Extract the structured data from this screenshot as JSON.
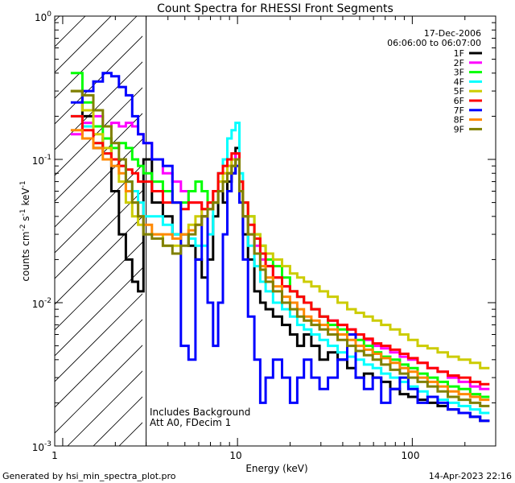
{
  "chart_data": {
    "type": "line",
    "title": "Count Spectra for RHESSI Front Segments",
    "xlabel": "Energy (keV)",
    "ylabel_parts": [
      "counts cm",
      "-2",
      " s",
      "-1",
      " keV",
      "-1"
    ],
    "x_scale": "log",
    "y_scale": "log",
    "xlim": [
      0.9,
      300
    ],
    "ylim": [
      0.001,
      1.0
    ],
    "x_tick_labels": [
      "1",
      "10",
      "100"
    ],
    "y_tick_labels": [
      {
        "base": "10",
        "exp": "0"
      },
      {
        "base": "10",
        "exp": "-1"
      },
      {
        "base": "10",
        "exp": "-2"
      },
      {
        "base": "10",
        "exp": "-3"
      }
    ],
    "date": "17-Dec-2006",
    "time_range": "06:06:00 to 06:07:00",
    "annotation_lines": [
      "Includes Background",
      "Att A0, FDecim 1"
    ],
    "hatched_region_keV": [
      0.9,
      3.0
    ],
    "series": [
      {
        "name": "1F",
        "color": "#000000",
        "x": [
          1.2,
          1.4,
          1.6,
          1.8,
          2.0,
          2.2,
          2.4,
          2.6,
          2.8,
          3.0,
          3.5,
          4.0,
          4.5,
          5.0,
          5.5,
          6.0,
          6.5,
          7.0,
          7.5,
          8.0,
          8.5,
          9.0,
          9.5,
          10.0,
          10.5,
          11.0,
          12,
          13,
          14,
          15,
          17,
          19,
          21,
          23,
          25,
          28,
          31,
          35,
          40,
          45,
          50,
          56,
          63,
          70,
          80,
          90,
          100,
          115,
          130,
          150,
          170,
          200,
          230,
          260
        ],
        "values": [
          0.3,
          0.2,
          0.12,
          0.14,
          0.06,
          0.03,
          0.02,
          0.014,
          0.012,
          0.1,
          0.05,
          0.04,
          0.03,
          0.03,
          0.025,
          0.02,
          0.015,
          0.02,
          0.04,
          0.06,
          0.05,
          0.07,
          0.08,
          0.12,
          0.06,
          0.03,
          0.02,
          0.012,
          0.01,
          0.009,
          0.008,
          0.007,
          0.006,
          0.005,
          0.006,
          0.005,
          0.004,
          0.0045,
          0.004,
          0.0035,
          0.003,
          0.0032,
          0.003,
          0.0028,
          0.0025,
          0.0023,
          0.0022,
          0.0021,
          0.002,
          0.0019,
          0.0018,
          0.0017,
          0.0016,
          0.0015
        ]
      },
      {
        "name": "2F",
        "color": "#ff00ff",
        "x": [
          1.2,
          1.4,
          1.6,
          1.8,
          2.0,
          2.2,
          2.4,
          2.6,
          2.8,
          3.0,
          3.5,
          4.0,
          4.5,
          5.0,
          5.5,
          6.0,
          6.5,
          7.0,
          7.5,
          8.0,
          8.5,
          9.0,
          9.5,
          10.0,
          10.5,
          11.0,
          12,
          13,
          14,
          15,
          17,
          19,
          21,
          23,
          25,
          28,
          31,
          35,
          40,
          45,
          50,
          56,
          63,
          70,
          80,
          90,
          100,
          115,
          130,
          150,
          170,
          200,
          230,
          260
        ],
        "values": [
          0.15,
          0.18,
          0.2,
          0.17,
          0.18,
          0.17,
          0.18,
          0.17,
          0.15,
          0.13,
          0.1,
          0.08,
          0.07,
          0.06,
          0.05,
          0.05,
          0.04,
          0.045,
          0.06,
          0.07,
          0.08,
          0.09,
          0.1,
          0.11,
          0.06,
          0.04,
          0.03,
          0.025,
          0.02,
          0.018,
          0.015,
          0.013,
          0.012,
          0.011,
          0.01,
          0.009,
          0.008,
          0.0075,
          0.007,
          0.0065,
          0.006,
          0.0055,
          0.005,
          0.0048,
          0.0045,
          0.0042,
          0.004,
          0.0038,
          0.0035,
          0.0033,
          0.003,
          0.0028,
          0.0026,
          0.0025
        ]
      },
      {
        "name": "3F",
        "color": "#00ff00",
        "x": [
          1.2,
          1.4,
          1.6,
          1.8,
          2.0,
          2.2,
          2.4,
          2.6,
          2.8,
          3.0,
          3.5,
          4.0,
          4.5,
          5.0,
          5.5,
          6.0,
          6.5,
          7.0,
          7.5,
          8.0,
          8.5,
          9.0,
          9.5,
          10.0,
          10.5,
          11.0,
          12,
          13,
          14,
          15,
          17,
          19,
          21,
          23,
          25,
          28,
          31,
          35,
          40,
          45,
          50,
          56,
          63,
          70,
          80,
          90,
          100,
          115,
          130,
          150,
          170,
          200,
          230,
          260
        ],
        "values": [
          0.4,
          0.25,
          0.17,
          0.14,
          0.12,
          0.13,
          0.12,
          0.1,
          0.09,
          0.08,
          0.07,
          0.06,
          0.05,
          0.05,
          0.06,
          0.07,
          0.06,
          0.05,
          0.05,
          0.06,
          0.07,
          0.08,
          0.09,
          0.1,
          0.06,
          0.05,
          0.04,
          0.03,
          0.025,
          0.02,
          0.018,
          0.015,
          0.012,
          0.011,
          0.01,
          0.009,
          0.008,
          0.007,
          0.0065,
          0.006,
          0.0055,
          0.005,
          0.0045,
          0.0042,
          0.004,
          0.0037,
          0.0035,
          0.0032,
          0.003,
          0.0028,
          0.0026,
          0.0025,
          0.0023,
          0.0022
        ]
      },
      {
        "name": "4F",
        "color": "#00ffff",
        "x": [
          1.2,
          1.4,
          1.6,
          1.8,
          2.0,
          2.2,
          2.4,
          2.6,
          2.8,
          3.0,
          3.5,
          4.0,
          4.5,
          5.0,
          5.5,
          6.0,
          6.5,
          7.0,
          7.5,
          8.0,
          8.5,
          9.0,
          9.5,
          10.0,
          10.5,
          11.0,
          12,
          13,
          14,
          15,
          17,
          19,
          21,
          23,
          25,
          28,
          31,
          35,
          40,
          45,
          50,
          56,
          63,
          70,
          80,
          90,
          100,
          115,
          130,
          150,
          170,
          200,
          230,
          260
        ],
        "values": [
          0.2,
          0.17,
          0.13,
          0.11,
          0.1,
          0.09,
          0.07,
          0.06,
          0.05,
          0.04,
          0.04,
          0.035,
          0.03,
          0.03,
          0.028,
          0.025,
          0.025,
          0.03,
          0.05,
          0.08,
          0.1,
          0.14,
          0.16,
          0.18,
          0.08,
          0.04,
          0.025,
          0.018,
          0.014,
          0.012,
          0.01,
          0.009,
          0.008,
          0.007,
          0.0065,
          0.006,
          0.0055,
          0.005,
          0.0045,
          0.0042,
          0.004,
          0.0037,
          0.0035,
          0.0032,
          0.003,
          0.0028,
          0.0026,
          0.0024,
          0.0022,
          0.0021,
          0.002,
          0.0019,
          0.0018,
          0.0017
        ]
      },
      {
        "name": "5F",
        "color": "#cccc00",
        "x": [
          1.2,
          1.4,
          1.6,
          1.8,
          2.0,
          2.2,
          2.4,
          2.6,
          2.8,
          3.0,
          3.5,
          4.0,
          4.5,
          5.0,
          5.5,
          6.0,
          6.5,
          7.0,
          7.5,
          8.0,
          8.5,
          9.0,
          9.5,
          10.0,
          10.5,
          11.0,
          12,
          13,
          14,
          15,
          17,
          19,
          21,
          23,
          25,
          28,
          31,
          35,
          40,
          45,
          50,
          56,
          63,
          70,
          80,
          90,
          100,
          115,
          130,
          150,
          170,
          200,
          230,
          260
        ],
        "values": [
          0.3,
          0.22,
          0.15,
          0.12,
          0.1,
          0.07,
          0.05,
          0.04,
          0.035,
          0.03,
          0.03,
          0.025,
          0.025,
          0.03,
          0.035,
          0.04,
          0.045,
          0.05,
          0.06,
          0.07,
          0.08,
          0.09,
          0.1,
          0.1,
          0.07,
          0.05,
          0.04,
          0.03,
          0.025,
          0.022,
          0.02,
          0.018,
          0.016,
          0.015,
          0.014,
          0.013,
          0.012,
          0.011,
          0.01,
          0.009,
          0.0085,
          0.008,
          0.0075,
          0.007,
          0.0065,
          0.006,
          0.0055,
          0.005,
          0.0048,
          0.0045,
          0.0042,
          0.004,
          0.0038,
          0.0035
        ]
      },
      {
        "name": "6F",
        "color": "#ff0000",
        "x": [
          1.2,
          1.4,
          1.6,
          1.8,
          2.0,
          2.2,
          2.4,
          2.6,
          2.8,
          3.0,
          3.5,
          4.0,
          4.5,
          5.0,
          5.5,
          6.0,
          6.5,
          7.0,
          7.5,
          8.0,
          8.5,
          9.0,
          9.5,
          10.0,
          10.5,
          11.0,
          12,
          13,
          14,
          15,
          17,
          19,
          21,
          23,
          25,
          28,
          31,
          35,
          40,
          45,
          50,
          56,
          63,
          70,
          80,
          90,
          100,
          115,
          130,
          150,
          170,
          200,
          230,
          260
        ],
        "values": [
          0.2,
          0.16,
          0.13,
          0.11,
          0.1,
          0.09,
          0.085,
          0.08,
          0.07,
          0.07,
          0.06,
          0.05,
          0.05,
          0.045,
          0.05,
          0.05,
          0.045,
          0.05,
          0.06,
          0.08,
          0.09,
          0.1,
          0.11,
          0.11,
          0.07,
          0.05,
          0.035,
          0.028,
          0.022,
          0.018,
          0.015,
          0.013,
          0.012,
          0.011,
          0.01,
          0.009,
          0.008,
          0.0075,
          0.007,
          0.0065,
          0.006,
          0.0056,
          0.0052,
          0.005,
          0.0047,
          0.0044,
          0.0041,
          0.0038,
          0.0035,
          0.0033,
          0.0031,
          0.003,
          0.0028,
          0.0027
        ]
      },
      {
        "name": "7F",
        "color": "#0000ff",
        "x": [
          1.2,
          1.4,
          1.6,
          1.8,
          2.0,
          2.2,
          2.4,
          2.6,
          2.8,
          3.0,
          3.5,
          4.0,
          4.5,
          5.0,
          5.5,
          6.0,
          6.5,
          7.0,
          7.5,
          8.0,
          8.5,
          9.0,
          9.5,
          10.0,
          10.5,
          11.0,
          12,
          13,
          14,
          15,
          17,
          19,
          21,
          23,
          25,
          28,
          31,
          35,
          40,
          45,
          50,
          56,
          63,
          70,
          80,
          90,
          100,
          115,
          130,
          150,
          170,
          200,
          230,
          260
        ],
        "values": [
          0.25,
          0.3,
          0.35,
          0.4,
          0.38,
          0.32,
          0.28,
          0.2,
          0.15,
          0.13,
          0.1,
          0.09,
          0.05,
          0.005,
          0.004,
          0.02,
          0.04,
          0.01,
          0.005,
          0.01,
          0.03,
          0.06,
          0.08,
          0.09,
          0.05,
          0.02,
          0.008,
          0.004,
          0.002,
          0.003,
          0.004,
          0.003,
          0.002,
          0.003,
          0.004,
          0.003,
          0.0025,
          0.003,
          0.004,
          0.006,
          0.003,
          0.0025,
          0.003,
          0.002,
          0.0025,
          0.003,
          0.0025,
          0.002,
          0.0022,
          0.002,
          0.0018,
          0.0017,
          0.0016,
          0.0015
        ]
      },
      {
        "name": "8F",
        "color": "#ff8800",
        "x": [
          1.2,
          1.4,
          1.6,
          1.8,
          2.0,
          2.2,
          2.4,
          2.6,
          2.8,
          3.0,
          3.5,
          4.0,
          4.5,
          5.0,
          5.5,
          6.0,
          6.5,
          7.0,
          7.5,
          8.0,
          8.5,
          9.0,
          9.5,
          10.0,
          10.5,
          11.0,
          12,
          13,
          14,
          15,
          17,
          19,
          21,
          23,
          25,
          28,
          31,
          35,
          40,
          45,
          50,
          56,
          63,
          70,
          80,
          90,
          100,
          115,
          130,
          150,
          170,
          200,
          230,
          260
        ],
        "values": [
          0.16,
          0.14,
          0.12,
          0.1,
          0.09,
          0.08,
          0.06,
          0.05,
          0.04,
          0.035,
          0.03,
          0.03,
          0.028,
          0.03,
          0.032,
          0.035,
          0.04,
          0.045,
          0.05,
          0.06,
          0.07,
          0.08,
          0.09,
          0.1,
          0.06,
          0.04,
          0.03,
          0.022,
          0.018,
          0.015,
          0.013,
          0.011,
          0.01,
          0.009,
          0.008,
          0.0075,
          0.007,
          0.0065,
          0.006,
          0.0055,
          0.005,
          0.0047,
          0.0044,
          0.0041,
          0.0038,
          0.0035,
          0.0033,
          0.003,
          0.0028,
          0.0026,
          0.0024,
          0.0023,
          0.0022,
          0.0021
        ]
      },
      {
        "name": "9F",
        "color": "#808000",
        "x": [
          1.2,
          1.4,
          1.6,
          1.8,
          2.0,
          2.2,
          2.4,
          2.6,
          2.8,
          3.0,
          3.5,
          4.0,
          4.5,
          5.0,
          5.5,
          6.0,
          6.5,
          7.0,
          7.5,
          8.0,
          8.5,
          9.0,
          9.5,
          10.0,
          10.5,
          11.0,
          12,
          13,
          14,
          15,
          17,
          19,
          21,
          23,
          25,
          28,
          31,
          35,
          40,
          45,
          50,
          56,
          63,
          70,
          80,
          90,
          100,
          115,
          130,
          150,
          170,
          200,
          230,
          260
        ],
        "values": [
          0.3,
          0.28,
          0.22,
          0.17,
          0.13,
          0.1,
          0.07,
          0.05,
          0.04,
          0.03,
          0.028,
          0.025,
          0.022,
          0.025,
          0.03,
          0.035,
          0.04,
          0.045,
          0.05,
          0.06,
          0.07,
          0.08,
          0.09,
          0.1,
          0.06,
          0.04,
          0.03,
          0.022,
          0.017,
          0.014,
          0.012,
          0.01,
          0.009,
          0.008,
          0.0075,
          0.007,
          0.0065,
          0.006,
          0.0055,
          0.005,
          0.0046,
          0.0043,
          0.004,
          0.0037,
          0.0034,
          0.0032,
          0.003,
          0.0028,
          0.0026,
          0.0024,
          0.0022,
          0.0021,
          0.002,
          0.0019
        ]
      }
    ]
  },
  "footer": {
    "generated_by": "Generated by hsi_min_spectra_plot.pro",
    "timestamp": "14-Apr-2023 22:16"
  }
}
